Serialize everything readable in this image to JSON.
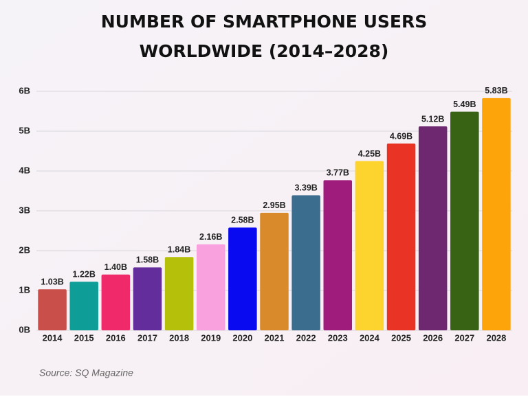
{
  "chart_data": {
    "type": "bar",
    "title": [
      "NUMBER OF SMARTPHONE USERS",
      "WORLDWIDE (2014–2028)"
    ],
    "categories": [
      "2014",
      "2015",
      "2016",
      "2017",
      "2018",
      "2019",
      "2020",
      "2021",
      "2022",
      "2023",
      "2024",
      "2025",
      "2026",
      "2027",
      "2028"
    ],
    "values": [
      1.03,
      1.22,
      1.4,
      1.58,
      1.84,
      2.16,
      2.58,
      2.95,
      3.39,
      3.77,
      4.25,
      4.69,
      5.12,
      5.49,
      5.83
    ],
    "value_labels": [
      "1.03B",
      "1.22B",
      "1.40B",
      "1.58B",
      "1.84B",
      "2.16B",
      "2.58B",
      "2.95B",
      "3.39B",
      "3.77B",
      "4.25B",
      "4.69B",
      "5.12B",
      "5.49B",
      "5.83B"
    ],
    "colors": [
      "#c9504a",
      "#0f9e97",
      "#f0296a",
      "#642d9c",
      "#b5c00a",
      "#f9a0de",
      "#0a0af0",
      "#d98b2b",
      "#3b6d8f",
      "#a01c7c",
      "#fdd32e",
      "#e83325",
      "#6e2870",
      "#386314",
      "#fca40a"
    ],
    "ylim": [
      0,
      6
    ],
    "yticks": [
      {
        "value": 0,
        "label": "0B"
      },
      {
        "value": 1,
        "label": "1B"
      },
      {
        "value": 2,
        "label": "2B"
      },
      {
        "value": 3,
        "label": "3B"
      },
      {
        "value": 4,
        "label": "4B"
      },
      {
        "value": 5,
        "label": "5B"
      },
      {
        "value": 6,
        "label": "6B"
      }
    ],
    "grid": true,
    "source": "Source: SQ Magazine"
  }
}
